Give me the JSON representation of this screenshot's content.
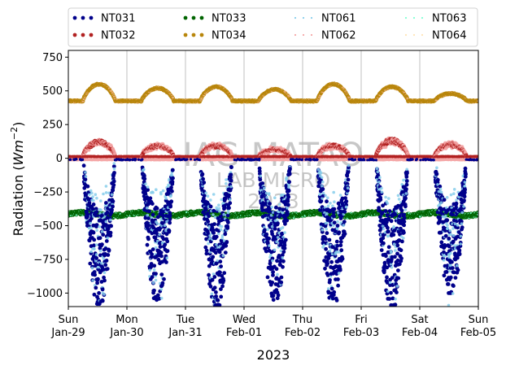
{
  "chart_data": {
    "type": "scatter",
    "xlabel": "2023",
    "ylabel_main": "Radiation (",
    "ylabel_unit": "Wm",
    "ylabel_exp": "−2",
    "ylabel_close": ")",
    "xlim": [
      "2023-01-29",
      "2023-02-05"
    ],
    "ylim": [
      -1100,
      800
    ],
    "yticks": [
      -1000,
      -750,
      -500,
      -250,
      0,
      250,
      500,
      750
    ],
    "ytick_labels": [
      "−1000",
      "−750",
      "−500",
      "−250",
      "0",
      "250",
      "500",
      "750"
    ],
    "x_ticks": [
      {
        "date": "2023-01-29",
        "day": "Sun",
        "date_label": "Jan-29"
      },
      {
        "date": "2023-01-30",
        "day": "Mon",
        "date_label": "Jan-30"
      },
      {
        "date": "2023-01-31",
        "day": "Tue",
        "date_label": "Jan-31"
      },
      {
        "date": "2023-02-01",
        "day": "Wed",
        "date_label": "Feb-01"
      },
      {
        "date": "2023-02-02",
        "day": "Thu",
        "date_label": "Feb-02"
      },
      {
        "date": "2023-02-03",
        "day": "Fri",
        "date_label": "Feb-03"
      },
      {
        "date": "2023-02-04",
        "day": "Sat",
        "date_label": "Feb-04"
      },
      {
        "date": "2023-02-05",
        "day": "Sun",
        "date_label": "Feb-05"
      }
    ],
    "grid": "vertical",
    "legend_position": "top, outside",
    "watermark": [
      "IAG-MATAO",
      "LAB MICRO",
      "2023"
    ],
    "series": [
      {
        "name": "NT031",
        "color": "#00008b",
        "style": "dots",
        "baseline": -10,
        "pattern": "night-negative",
        "daily_min": [
          -1080,
          -1050,
          -1090,
          -1050,
          -1060,
          -1090,
          -1000
        ]
      },
      {
        "name": "NT032",
        "color": "#b22222",
        "style": "dots",
        "baseline": 10,
        "pattern": "day-positive",
        "daily_max": [
          130,
          100,
          100,
          70,
          100,
          140,
          110
        ]
      },
      {
        "name": "NT033",
        "color": "#006400",
        "style": "dots",
        "mean": -415,
        "range": [
          -460,
          -380
        ]
      },
      {
        "name": "NT034",
        "color": "#b8860b",
        "style": "dots",
        "night": 425,
        "daily_max": [
          550,
          520,
          530,
          510,
          550,
          530,
          480
        ]
      },
      {
        "name": "NT061",
        "color": "#87ceeb",
        "style": "dotted"
      },
      {
        "name": "NT062",
        "color": "#f4a6a6",
        "style": "dotted"
      },
      {
        "name": "NT063",
        "color": "#7fffd4",
        "style": "dotted"
      },
      {
        "name": "NT064",
        "color": "#ffe4b5",
        "style": "dotted"
      }
    ]
  }
}
